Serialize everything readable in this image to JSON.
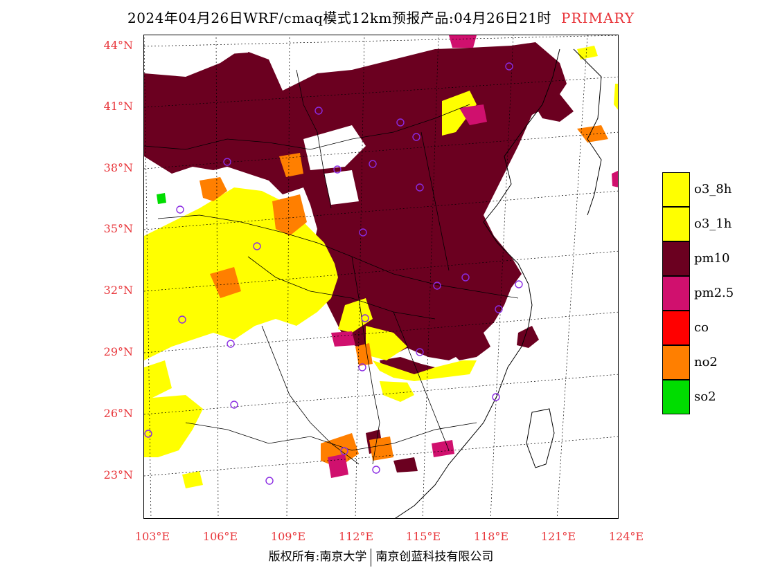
{
  "title": {
    "main": "2024年04月26日WRF/cmaq模式12km预报产品:04月26日21时",
    "tag": "PRIMARY"
  },
  "axes": {
    "lat_labels": [
      "44°N",
      "41°N",
      "38°N",
      "35°N",
      "32°N",
      "29°N",
      "26°N",
      "23°N"
    ],
    "lon_labels": [
      "103°E",
      "106°E",
      "109°E",
      "112°E",
      "115°E",
      "118°E",
      "121°E",
      "124°E"
    ]
  },
  "legend": [
    {
      "label": "o3_8h",
      "color": "#ffff00"
    },
    {
      "label": "o3_1h",
      "color": "#ffff00"
    },
    {
      "label": "pm10",
      "color": "#6b0020"
    },
    {
      "label": "pm2.5",
      "color": "#d0106e"
    },
    {
      "label": "co",
      "color": "#ff0000"
    },
    {
      "label": "no2",
      "color": "#ff7f00"
    },
    {
      "label": "so2",
      "color": "#00dd00"
    }
  ],
  "footer": {
    "left": "版权所有:南京大学",
    "right": "南京创蓝科技有限公司"
  }
}
